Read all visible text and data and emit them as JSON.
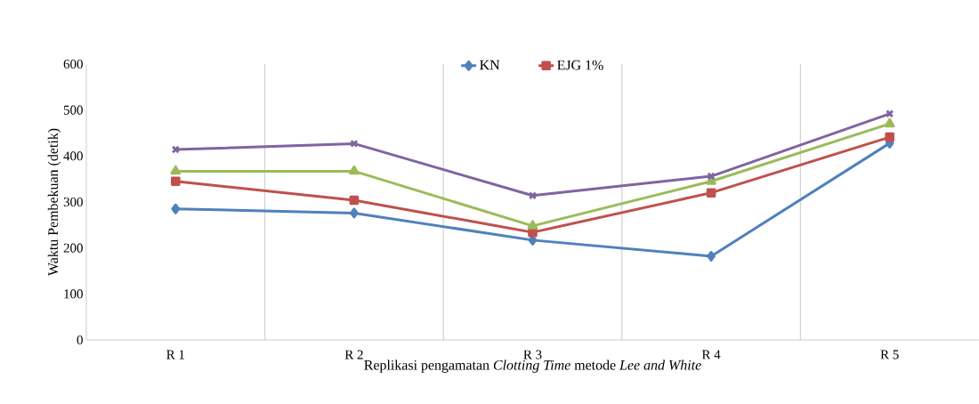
{
  "chart_data": {
    "type": "line",
    "xlabel": "Replikasi pengamatan *Clotting Time* metode *Lee and White*",
    "ylabel": "Waktu Pembekuan (detik)",
    "categories": [
      "R 1",
      "R 2",
      "R 3",
      "R 4",
      "R 5"
    ],
    "series": [
      {
        "name": "KN",
        "color": "#4f81bd",
        "marker": "diamond",
        "values": [
          285,
          276,
          217,
          182,
          428
        ]
      },
      {
        "name": "EJG 1%",
        "color": "#c0504d",
        "marker": "square",
        "values": [
          345,
          304,
          234,
          320,
          441
        ]
      },
      {
        "color": "#9bbb59",
        "marker": "triangle",
        "values": [
          367,
          367,
          248,
          345,
          470
        ]
      },
      {
        "color": "#8064a2",
        "marker": "cross",
        "values": [
          414,
          427,
          314,
          356,
          492
        ]
      }
    ],
    "ylim": [
      0,
      600
    ],
    "yticks": [
      0,
      100,
      200,
      300,
      400,
      500,
      600
    ],
    "grid": "x",
    "legend": "top",
    "line_style": "solid"
  }
}
